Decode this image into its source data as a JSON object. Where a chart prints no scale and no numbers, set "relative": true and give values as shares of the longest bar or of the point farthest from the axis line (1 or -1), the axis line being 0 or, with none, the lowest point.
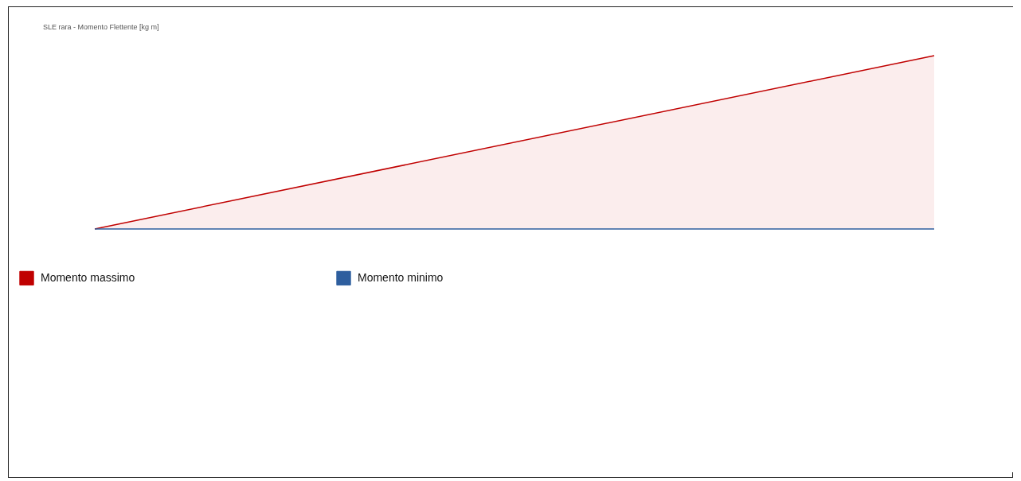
{
  "chart_data": {
    "type": "area",
    "title": "SLE rara - Momento Flettente [kg m]",
    "relative": true,
    "categories": [
      null,
      null
    ],
    "legend": "bottom left",
    "series": [
      {
        "name": "Momento massimo",
        "color": "#c00000",
        "values": [
          0,
          1
        ]
      },
      {
        "name": "Momento minimo",
        "type": "line",
        "color": "#2e5e9e",
        "values": [
          0,
          0
        ]
      }
    ]
  }
}
